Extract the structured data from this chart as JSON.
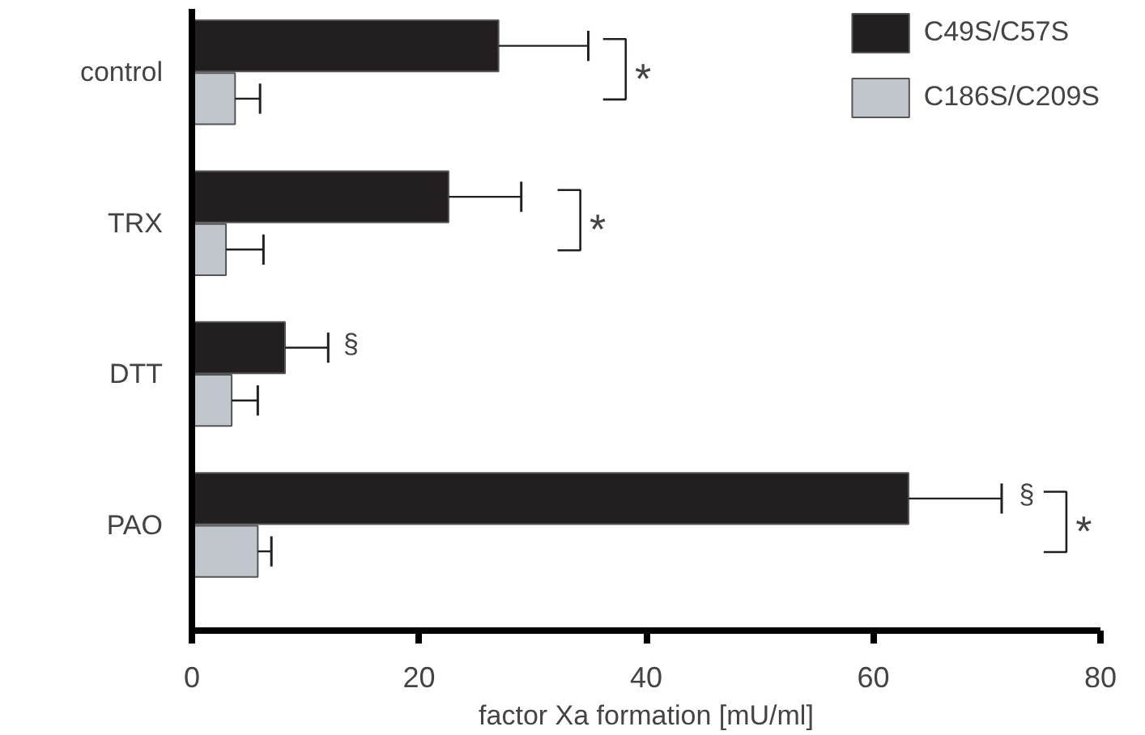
{
  "chart_data": {
    "type": "bar",
    "orientation": "horizontal",
    "xlabel": "factor Xa formation [mU/ml]",
    "categories": [
      "control",
      "TRX",
      "DTT",
      "PAO"
    ],
    "series": [
      {
        "name": "C49S/C57S",
        "color": "#231f20",
        "values": [
          27.0,
          22.6,
          8.2,
          63.1
        ],
        "errors": [
          [
            27.0,
            34.9
          ],
          [
            22.6,
            29.0
          ],
          [
            8.2,
            12.0
          ],
          [
            63.1,
            71.3
          ]
        ]
      },
      {
        "name": "C186S/C209S",
        "color": "#c1c6cc",
        "values": [
          3.8,
          3.0,
          3.5,
          5.8
        ],
        "errors": [
          [
            3.8,
            6.0
          ],
          [
            3.0,
            6.3
          ],
          [
            3.5,
            5.8
          ],
          [
            5.8,
            7.0
          ]
        ]
      }
    ],
    "xlim": [
      0,
      80
    ],
    "xticks": [
      0,
      20,
      40,
      60,
      80
    ],
    "annotations": [
      "*",
      "*",
      "§",
      "§",
      "*"
    ],
    "legend": "top right",
    "grid": false
  }
}
